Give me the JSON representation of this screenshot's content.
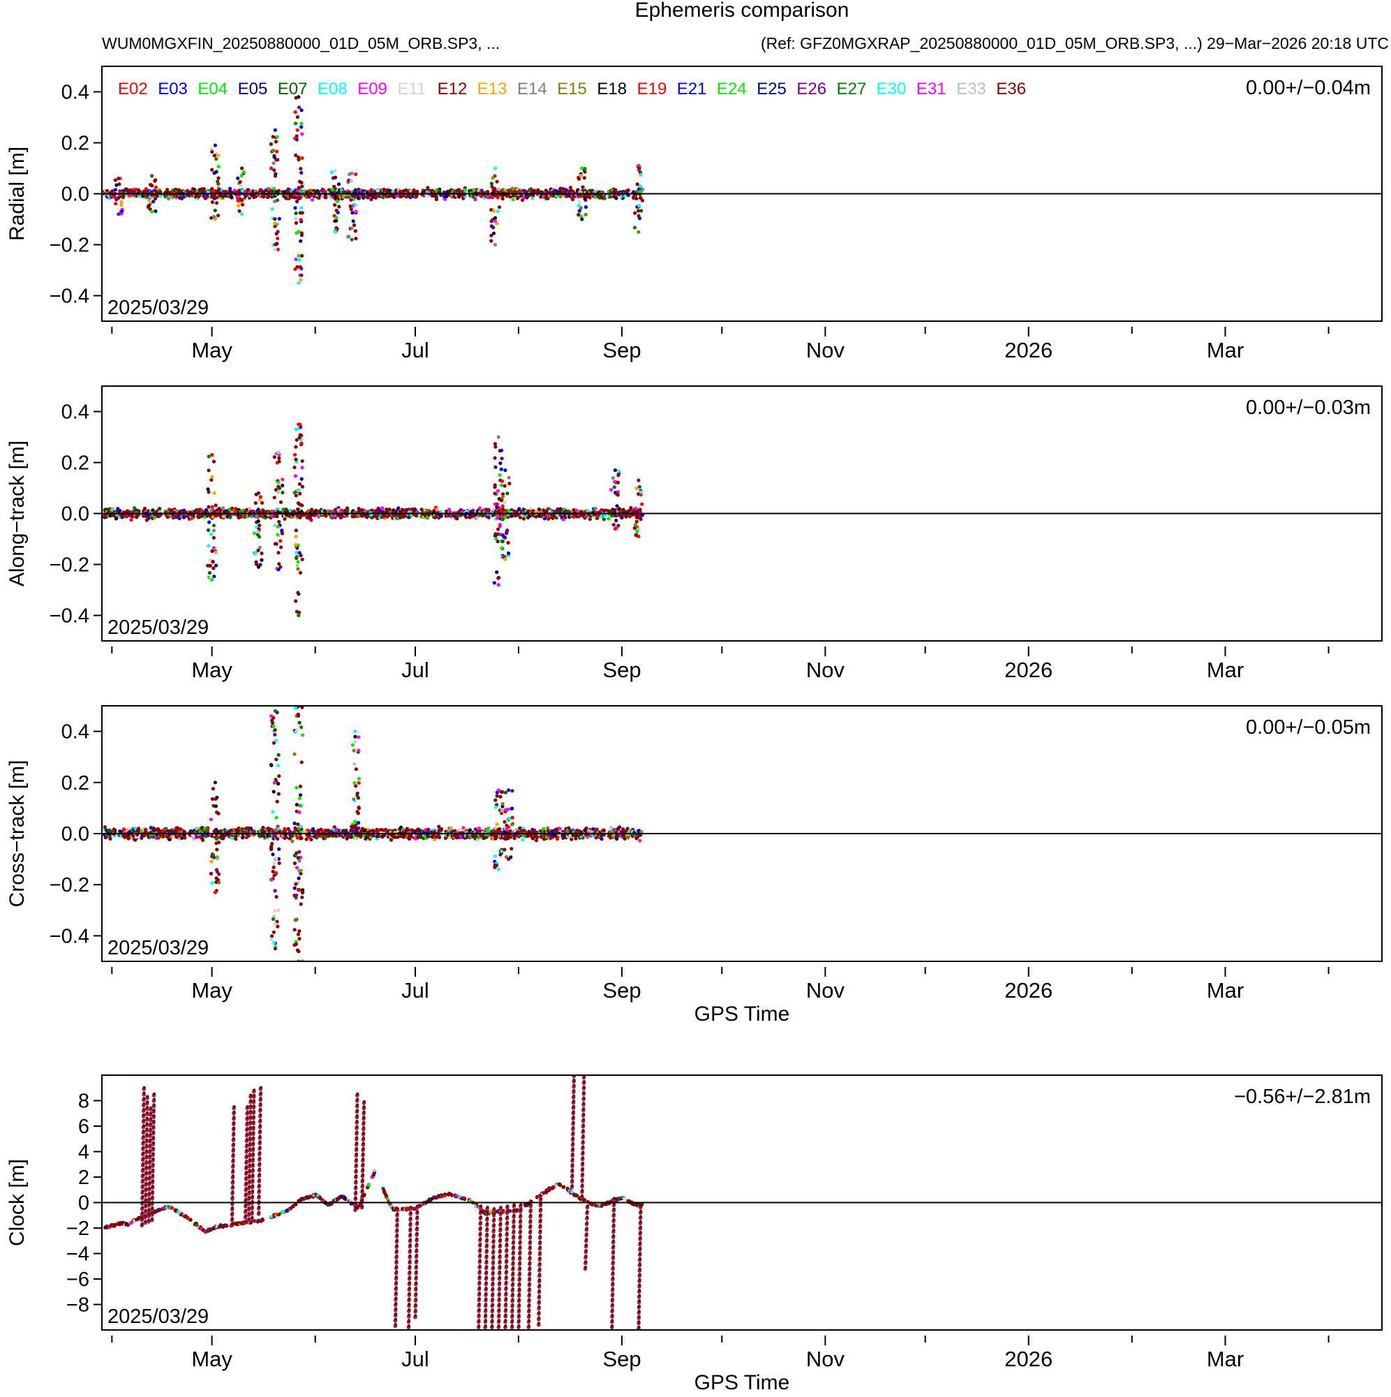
{
  "header": {
    "title": "Ephemeris comparison",
    "left_file": "WUM0MGXFIN_20250880000_01D_05M_ORB.SP3, ...",
    "right_ref": "(Ref: GFZ0MGXRAP_20250880000_01D_05M_ORB.SP3, ...) 29−Mar−2026 20:18 UTC"
  },
  "legend": [
    {
      "name": "E02",
      "color": "#ff0000"
    },
    {
      "name": "E03",
      "color": "#0000ff"
    },
    {
      "name": "E04",
      "color": "#00ee00"
    },
    {
      "name": "E05",
      "color": "#00008b"
    },
    {
      "name": "E07",
      "color": "#006400"
    },
    {
      "name": "E08",
      "color": "#00ffff"
    },
    {
      "name": "E09",
      "color": "#ff00ff"
    },
    {
      "name": "E11",
      "color": "#d3d3d3"
    },
    {
      "name": "E12",
      "color": "#8b0000"
    },
    {
      "name": "E13",
      "color": "#ffa500"
    },
    {
      "name": "E14",
      "color": "#808080"
    },
    {
      "name": "E15",
      "color": "#808000"
    },
    {
      "name": "E18",
      "color": "#000000"
    },
    {
      "name": "E19",
      "color": "#ff0000"
    },
    {
      "name": "E21",
      "color": "#0000ff"
    },
    {
      "name": "E24",
      "color": "#00ee00"
    },
    {
      "name": "E25",
      "color": "#00008b"
    },
    {
      "name": "E26",
      "color": "#800080"
    },
    {
      "name": "E27",
      "color": "#008000"
    },
    {
      "name": "E30",
      "color": "#00ffff"
    },
    {
      "name": "E31",
      "color": "#ff00ff"
    },
    {
      "name": "E33",
      "color": "#c0c0c0"
    },
    {
      "name": "E36",
      "color": "#8b0000"
    }
  ],
  "chart_data": [
    {
      "type": "scatter",
      "ylabel": "Radial [m]",
      "xlabel": "",
      "date_label": "2025/03/29",
      "stats": "0.00+/−0.04m",
      "ylim": [
        -0.5,
        0.5
      ],
      "yticks": [
        0.4,
        0.2,
        0.0,
        -0.2,
        -0.4
      ],
      "ytick_labels": [
        "0.4",
        "0.2",
        "0.0",
        "−0.2",
        "−0.4"
      ],
      "xlim": [
        "2025-03-29",
        "2026-04-17"
      ],
      "xtick_labels": [
        "May",
        "Jul",
        "Sep",
        "Nov",
        "2026",
        "Mar"
      ],
      "data_end": "2025-09-07",
      "clusters": [
        {
          "x": "2025-04-03",
          "y_range": [
            -0.08,
            0.06
          ]
        },
        {
          "x": "2025-04-13",
          "y_range": [
            -0.07,
            0.07
          ]
        },
        {
          "x": "2025-05-02",
          "y_range": [
            -0.1,
            0.19
          ]
        },
        {
          "x": "2025-05-10",
          "y_range": [
            -0.08,
            0.1
          ]
        },
        {
          "x": "2025-05-20",
          "y_range": [
            -0.22,
            0.25
          ]
        },
        {
          "x": "2025-05-27",
          "y_range": [
            -0.35,
            0.38
          ]
        },
        {
          "x": "2025-06-07",
          "y_range": [
            -0.15,
            0.09
          ]
        },
        {
          "x": "2025-06-12",
          "y_range": [
            -0.18,
            0.08
          ]
        },
        {
          "x": "2025-07-25",
          "y_range": [
            -0.2,
            0.1
          ]
        },
        {
          "x": "2025-08-20",
          "y_range": [
            -0.1,
            0.1
          ]
        },
        {
          "x": "2025-09-06",
          "y_range": [
            -0.15,
            0.11
          ]
        }
      ]
    },
    {
      "type": "scatter",
      "ylabel": "Along−track [m]",
      "xlabel": "",
      "date_label": "2025/03/29",
      "stats": "0.00+/−0.03m",
      "ylim": [
        -0.5,
        0.5
      ],
      "yticks": [
        0.4,
        0.2,
        0.0,
        -0.2,
        -0.4
      ],
      "ytick_labels": [
        "0.4",
        "0.2",
        "0.0",
        "−0.2",
        "−0.4"
      ],
      "xlim": [
        "2025-03-29",
        "2026-04-17"
      ],
      "xtick_labels": [
        "May",
        "Jul",
        "Sep",
        "Nov",
        "2026",
        "Mar"
      ],
      "data_end": "2025-09-07",
      "clusters": [
        {
          "x": "2025-05-01",
          "y_range": [
            -0.26,
            0.23
          ]
        },
        {
          "x": "2025-05-15",
          "y_range": [
            -0.21,
            0.08
          ]
        },
        {
          "x": "2025-05-21",
          "y_range": [
            -0.22,
            0.24
          ]
        },
        {
          "x": "2025-05-27",
          "y_range": [
            -0.4,
            0.35
          ]
        },
        {
          "x": "2025-07-26",
          "y_range": [
            -0.28,
            0.3
          ]
        },
        {
          "x": "2025-07-28",
          "y_range": [
            -0.18,
            0.17
          ]
        },
        {
          "x": "2025-08-30",
          "y_range": [
            -0.06,
            0.17
          ]
        },
        {
          "x": "2025-09-06",
          "y_range": [
            -0.09,
            0.13
          ]
        }
      ]
    },
    {
      "type": "scatter",
      "ylabel": "Cross−track [m]",
      "xlabel": "GPS Time",
      "date_label": "2025/03/29",
      "stats": "0.00+/−0.05m",
      "ylim": [
        -0.5,
        0.5
      ],
      "yticks": [
        0.4,
        0.2,
        0.0,
        -0.2,
        -0.4
      ],
      "ytick_labels": [
        "0.4",
        "0.2",
        "0.0",
        "−0.2",
        "−0.4"
      ],
      "xlim": [
        "2025-03-29",
        "2026-04-17"
      ],
      "xtick_labels": [
        "May",
        "Jul",
        "Sep",
        "Nov",
        "2026",
        "Mar"
      ],
      "data_end": "2025-09-07",
      "clusters": [
        {
          "x": "2025-05-02",
          "y_range": [
            -0.23,
            0.2
          ]
        },
        {
          "x": "2025-05-20",
          "y_range": [
            -0.45,
            0.48
          ]
        },
        {
          "x": "2025-05-27",
          "y_range": [
            -0.5,
            0.5
          ]
        },
        {
          "x": "2025-06-13",
          "y_range": [
            -0.02,
            0.4
          ]
        },
        {
          "x": "2025-07-26",
          "y_range": [
            -0.14,
            0.17
          ]
        },
        {
          "x": "2025-07-29",
          "y_range": [
            -0.1,
            0.17
          ]
        }
      ]
    },
    {
      "type": "scatter",
      "ylabel": "Clock [m]",
      "xlabel": "GPS Time",
      "date_label": "2025/03/29",
      "stats": "−0.56+/−2.81m",
      "ylim": [
        -10,
        10
      ],
      "yticks": [
        8,
        6,
        4,
        2,
        0,
        -2,
        -4,
        -6,
        -8
      ],
      "ytick_labels": [
        "8",
        "6",
        "4",
        "2",
        "0",
        "−2",
        "−4",
        "−6",
        "−8"
      ],
      "xlim": [
        "2025-03-29",
        "2026-04-17"
      ],
      "xtick_labels": [
        "May",
        "Jul",
        "Sep",
        "Nov",
        "2026",
        "Mar"
      ],
      "data_end": "2025-09-07",
      "drift_points": [
        [
          "2025-03-29",
          -2.0
        ],
        [
          "2025-04-04",
          -1.6
        ],
        [
          "2025-04-06",
          -1.8
        ],
        [
          "2025-04-07",
          -1.5
        ],
        [
          "2025-04-15",
          -0.6
        ],
        [
          "2025-04-18",
          -0.3
        ],
        [
          "2025-04-24",
          -1.2
        ],
        [
          "2025-04-29",
          -2.3
        ],
        [
          "2025-05-03",
          -1.9
        ],
        [
          "2025-05-10",
          -1.6
        ],
        [
          "2025-05-16",
          -1.4
        ],
        [
          "2025-05-24",
          -0.6
        ],
        [
          "2025-05-28",
          0.3
        ],
        [
          "2025-06-01",
          0.6
        ],
        [
          "2025-06-05",
          -0.2
        ],
        [
          "2025-06-09",
          0.5
        ],
        [
          "2025-06-14",
          -0.4
        ],
        [
          "2025-06-19",
          2.5
        ],
        [
          "2025-06-24",
          -0.5
        ],
        [
          "2025-07-01",
          -0.5
        ],
        [
          "2025-07-06",
          0.3
        ],
        [
          "2025-07-11",
          0.7
        ],
        [
          "2025-07-17",
          0.2
        ],
        [
          "2025-07-22",
          -0.8
        ],
        [
          "2025-08-01",
          -0.6
        ],
        [
          "2025-08-07",
          0.5
        ],
        [
          "2025-08-13",
          1.5
        ],
        [
          "2025-08-19",
          0.4
        ],
        [
          "2025-08-25",
          -0.3
        ],
        [
          "2025-09-01",
          0.4
        ],
        [
          "2025-09-05",
          -0.2
        ]
      ],
      "jumps": [
        {
          "x": "2025-04-10",
          "y_range": [
            -1.8,
            8.9
          ]
        },
        {
          "x": "2025-04-11",
          "y_range": [
            -1.6,
            8.2
          ]
        },
        {
          "x": "2025-04-12",
          "y_range": [
            -1.5,
            7.3
          ]
        },
        {
          "x": "2025-04-13",
          "y_range": [
            -1.4,
            8.4
          ]
        },
        {
          "x": "2025-05-07",
          "y_range": [
            -1.8,
            7.4
          ]
        },
        {
          "x": "2025-05-11",
          "y_range": [
            -1.6,
            7.4
          ]
        },
        {
          "x": "2025-05-12",
          "y_range": [
            -1.4,
            8.3
          ]
        },
        {
          "x": "2025-05-13",
          "y_range": [
            -1.3,
            8.7
          ]
        },
        {
          "x": "2025-05-15",
          "y_range": [
            -0.9,
            8.9
          ]
        },
        {
          "x": "2025-06-13",
          "y_range": [
            -0.6,
            8.4
          ]
        },
        {
          "x": "2025-06-15",
          "y_range": [
            -0.4,
            7.8
          ]
        },
        {
          "x": "2025-06-25",
          "y_range": [
            -9.7,
            -0.6
          ]
        },
        {
          "x": "2025-06-29",
          "y_range": [
            -9.8,
            -0.5
          ]
        },
        {
          "x": "2025-07-01",
          "y_range": [
            -9.0,
            -0.4
          ]
        },
        {
          "x": "2025-07-20",
          "y_range": [
            -9.8,
            -0.4
          ]
        },
        {
          "x": "2025-07-22",
          "y_range": [
            -9.8,
            -0.5
          ]
        },
        {
          "x": "2025-07-24",
          "y_range": [
            -9.8,
            -0.6
          ]
        },
        {
          "x": "2025-07-26",
          "y_range": [
            -9.8,
            -0.5
          ]
        },
        {
          "x": "2025-07-28",
          "y_range": [
            -9.8,
            -0.4
          ]
        },
        {
          "x": "2025-07-30",
          "y_range": [
            -9.8,
            -0.3
          ]
        },
        {
          "x": "2025-08-01",
          "y_range": [
            -9.8,
            -0.3
          ]
        },
        {
          "x": "2025-08-04",
          "y_range": [
            -9.8,
            -0.3
          ]
        },
        {
          "x": "2025-08-07",
          "y_range": [
            -9.6,
            0.2
          ]
        },
        {
          "x": "2025-08-17",
          "y_range": [
            1.2,
            9.9
          ]
        },
        {
          "x": "2025-08-20",
          "y_range": [
            0.4,
            9.8
          ]
        },
        {
          "x": "2025-08-21",
          "y_range": [
            -5.2,
            -0.4
          ]
        },
        {
          "x": "2025-08-29",
          "y_range": [
            -9.8,
            0.2
          ]
        },
        {
          "x": "2025-09-06",
          "y_range": [
            -9.9,
            -0.4
          ]
        }
      ]
    }
  ]
}
